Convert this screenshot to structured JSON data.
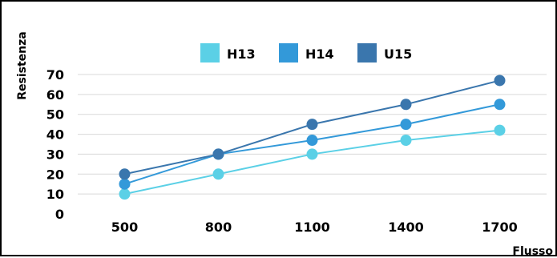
{
  "chart_data": {
    "type": "line",
    "title": "",
    "xlabel": "Flusso",
    "ylabel": "Resistenza",
    "categories": [
      "500",
      "800",
      "1100",
      "1400",
      "1700"
    ],
    "ylim": [
      0,
      70
    ],
    "yticks": [
      0,
      10,
      20,
      30,
      40,
      50,
      60,
      70
    ],
    "grid": true,
    "legend": "top-center",
    "series": [
      {
        "name": "H13",
        "color": "#5bd0e6",
        "values": [
          10,
          20,
          30,
          37,
          42
        ]
      },
      {
        "name": "H14",
        "color": "#3399d9",
        "values": [
          15,
          30,
          37,
          45,
          55
        ]
      },
      {
        "name": "U15",
        "color": "#3a76ad",
        "values": [
          20,
          30,
          45,
          55,
          67
        ]
      }
    ]
  }
}
